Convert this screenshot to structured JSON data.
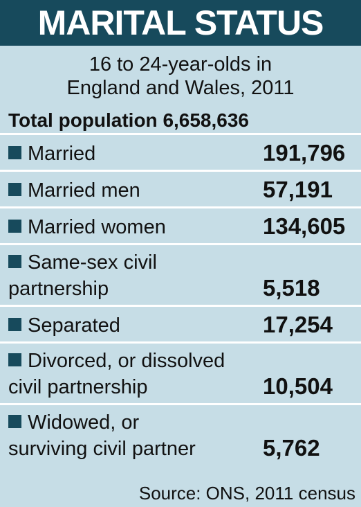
{
  "header": {
    "title": "MARITAL STATUS",
    "subtitle": [
      "16 to 24-year-olds in",
      "England and Wales, 2011"
    ],
    "total": "Total population 6,658,636"
  },
  "table": {
    "rows": [
      {
        "label": [
          "Married"
        ],
        "value": "191,796"
      },
      {
        "label": [
          "Married men"
        ],
        "value": "57,191"
      },
      {
        "label": [
          "Married women"
        ],
        "value": "134,605"
      },
      {
        "label": [
          "Same-sex civil",
          "partnership"
        ],
        "value": "5,518"
      },
      {
        "label": [
          "Separated"
        ],
        "value": "17,254"
      },
      {
        "label": [
          "Divorced, or dissolved",
          "civil partnership"
        ],
        "value": "10,504"
      },
      {
        "label": [
          "Widowed, or",
          "surviving civil partner"
        ],
        "value": "5,762"
      }
    ]
  },
  "footer": {
    "source": "Source: ONS, 2011 census"
  }
}
